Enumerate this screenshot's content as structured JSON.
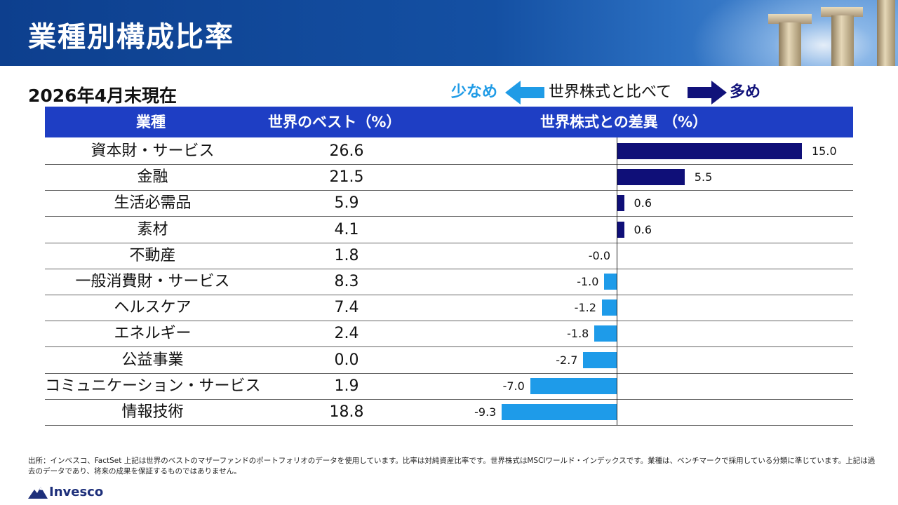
{
  "title": "業種別構成比率",
  "as_of": "2026年4月末現在",
  "legend": {
    "less": "少なめ",
    "middle": "世界株式と比べて",
    "more": "多め"
  },
  "table_header": {
    "sector": "業種",
    "weight": "世界のベスト（%）",
    "difference": "世界株式との差異 （%）"
  },
  "colors": {
    "header_band": "#1450a3",
    "table_header": "#1e3ec4",
    "positive_bar": "#0f0f78",
    "negative_bar": "#1e9be9"
  },
  "chart_data": {
    "type": "bar",
    "orientation": "horizontal",
    "categories": [
      "資本財・サービス",
      "金融",
      "生活必需品",
      "素材",
      "不動産",
      "一般消費財・サービス",
      "ヘルスケア",
      "エネルギー",
      "公益事業",
      "コミュニケーション・サービス",
      "情報技術"
    ],
    "weights": [
      "26.6",
      "21.5",
      "5.9",
      "4.1",
      "1.8",
      "8.3",
      "7.4",
      "2.4",
      "0.0",
      "1.9",
      "18.8"
    ],
    "values": [
      15.0,
      5.5,
      0.6,
      0.6,
      -0.0,
      -1.0,
      -1.2,
      -1.8,
      -2.7,
      -7.0,
      -9.3
    ],
    "labels": [
      "15.0",
      "5.5",
      "0.6",
      "0.6",
      "-0.0",
      "-1.0",
      "-1.2",
      "-1.8",
      "-2.7",
      "-7.0",
      "-9.3"
    ],
    "xlim": [
      -10,
      16
    ],
    "grid": false
  },
  "source_note": "出所：インベスコ、FactSet 上記は世界のベストのマザーファンドのポートフォリオのデータを使用しています。比率は対純資産比率です。世界株式はMSCIワールド・インデックスです。業種は、ベンチマークで採用している分類に準じています。上記は過去のデータであり、将来の成果を保証するものではありません。",
  "logo_text": "Invesco"
}
